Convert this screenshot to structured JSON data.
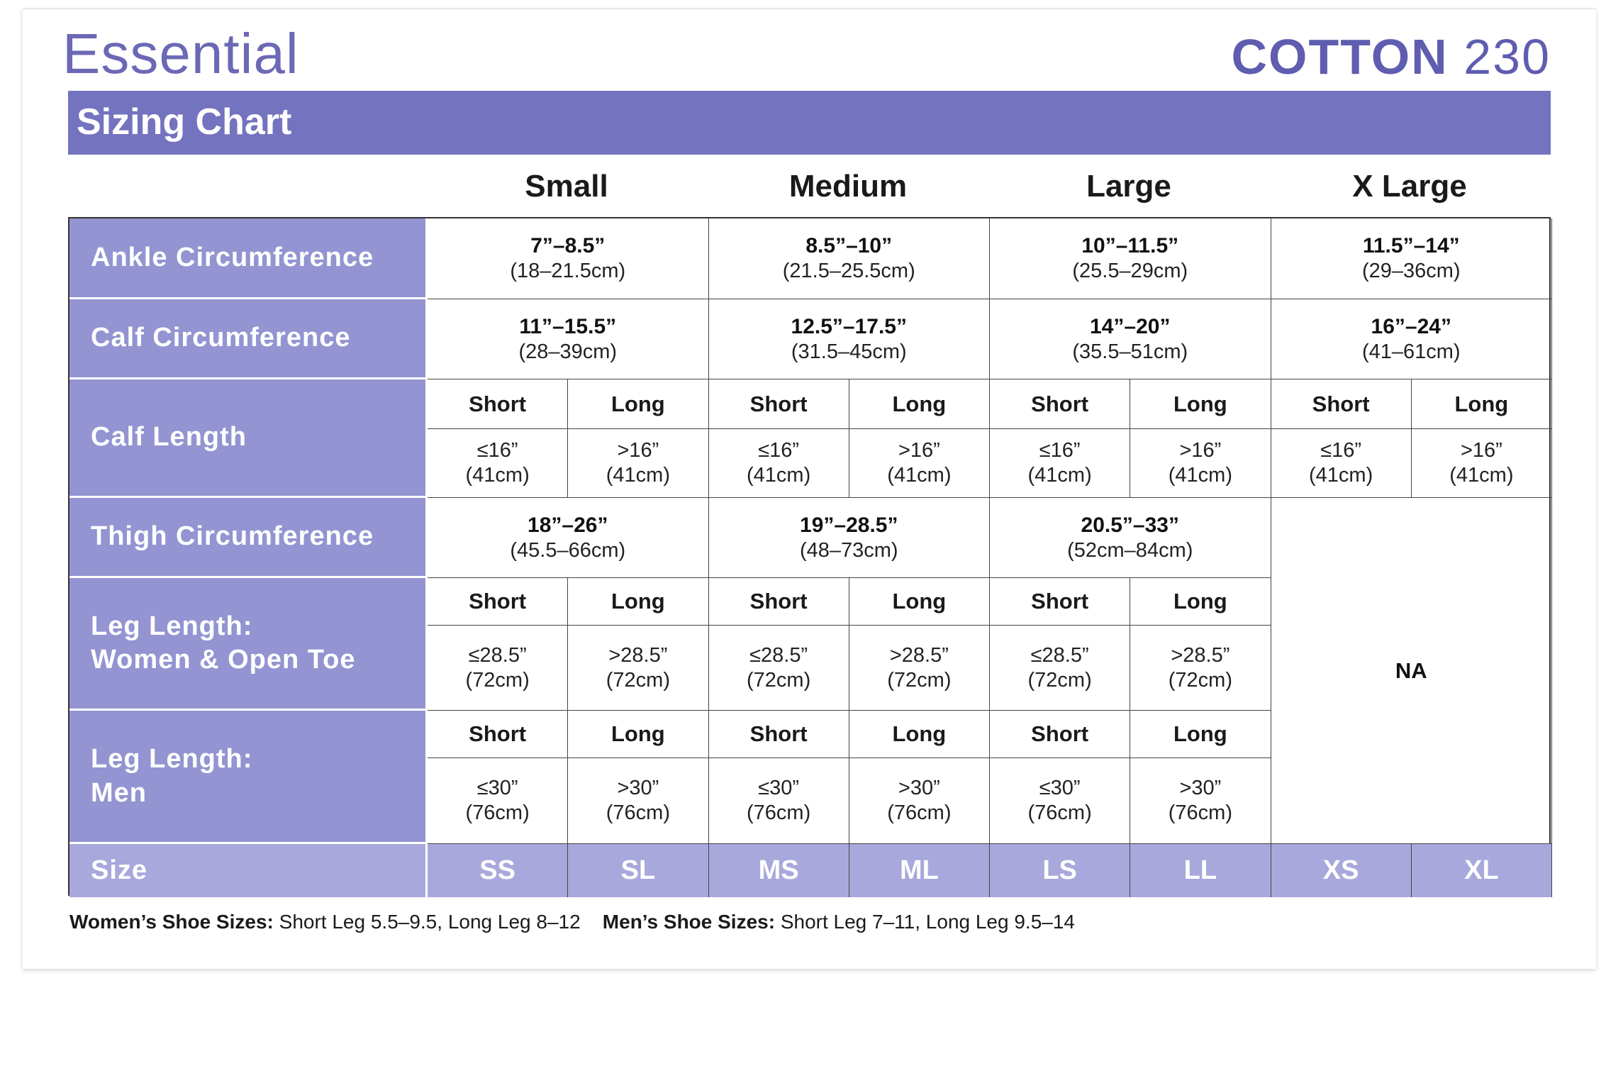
{
  "header": {
    "brand": "Essential",
    "product_name": "COTTON",
    "product_number": "230",
    "band_title": "Sizing Chart"
  },
  "sizes": [
    "Small",
    "Medium",
    "Large",
    "X Large"
  ],
  "colors": {
    "band": "#7473bf",
    "label_column": "#9394d1",
    "size_row": "#a8a8dc",
    "brand_text": "#6b69b5"
  },
  "rows": {
    "ankle": {
      "label": "Ankle Circumference",
      "values": [
        [
          "7”–8.5”",
          "(18–21.5cm)"
        ],
        [
          "8.5”–10”",
          "(21.5–25.5cm)"
        ],
        [
          "10”–11.5”",
          "(25.5–29cm)"
        ],
        [
          "11.5”–14”",
          "(29–36cm)"
        ]
      ]
    },
    "calf": {
      "label": "Calf Circumference",
      "values": [
        [
          "11”–15.5”",
          "(28–39cm)"
        ],
        [
          "12.5”–17.5”",
          "(31.5–45cm)"
        ],
        [
          "14”–20”",
          "(35.5–51cm)"
        ],
        [
          "16”–24”",
          "(41–61cm)"
        ]
      ]
    },
    "calf_length": {
      "label": "Calf Length",
      "headers": [
        "Short",
        "Long",
        "Short",
        "Long",
        "Short",
        "Long",
        "Short",
        "Long"
      ],
      "values": [
        [
          "≤16”",
          "(41cm)"
        ],
        [
          ">16”",
          "(41cm)"
        ],
        [
          "≤16”",
          "(41cm)"
        ],
        [
          ">16”",
          "(41cm)"
        ],
        [
          "≤16”",
          "(41cm)"
        ],
        [
          ">16”",
          "(41cm)"
        ],
        [
          "≤16”",
          "(41cm)"
        ],
        [
          ">16”",
          "(41cm)"
        ]
      ]
    },
    "thigh": {
      "label": "Thigh Circumference",
      "values": [
        [
          "18”–26”",
          "(45.5–66cm)"
        ],
        [
          "19”–28.5”",
          "(48–73cm)"
        ],
        [
          "20.5”–33”",
          "(52cm–84cm)"
        ]
      ]
    },
    "leg_women": {
      "label": [
        "Leg Length:",
        "Women & Open Toe"
      ],
      "headers": [
        "Short",
        "Long",
        "Short",
        "Long",
        "Short",
        "Long"
      ],
      "values": [
        [
          "≤28.5”",
          "(72cm)"
        ],
        [
          ">28.5”",
          "(72cm)"
        ],
        [
          "≤28.5”",
          "(72cm)"
        ],
        [
          ">28.5”",
          "(72cm)"
        ],
        [
          "≤28.5”",
          "(72cm)"
        ],
        [
          ">28.5”",
          "(72cm)"
        ]
      ]
    },
    "leg_men": {
      "label": [
        "Leg Length:",
        "Men"
      ],
      "headers": [
        "Short",
        "Long",
        "Short",
        "Long",
        "Short",
        "Long"
      ],
      "values": [
        [
          "≤30”",
          "(76cm)"
        ],
        [
          ">30”",
          "(76cm)"
        ],
        [
          "≤30”",
          "(76cm)"
        ],
        [
          ">30”",
          "(76cm)"
        ],
        [
          "≤30”",
          "(76cm)"
        ],
        [
          ">30”",
          "(76cm)"
        ]
      ]
    },
    "size": {
      "label": "Size",
      "codes": [
        "SS",
        "SL",
        "MS",
        "ML",
        "LS",
        "LL",
        "XS",
        "XL"
      ]
    }
  },
  "na_text": "NA",
  "footer": {
    "women_label": "Women’s Shoe Sizes:",
    "women_value": " Short Leg 5.5–9.5, Long Leg 8–12",
    "men_label": "Men’s Shoe Sizes:",
    "men_value": " Short Leg 7–11, Long Leg 9.5–14"
  }
}
